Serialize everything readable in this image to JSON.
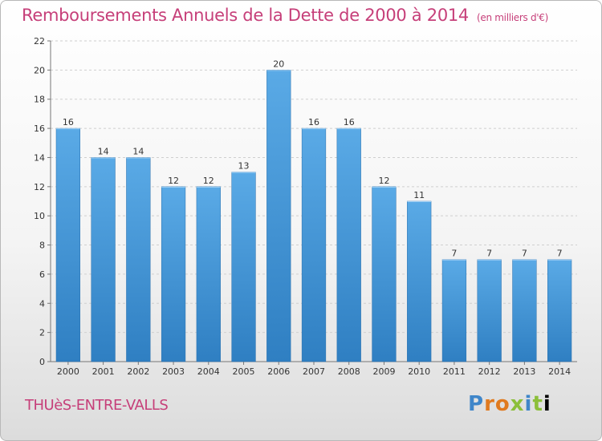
{
  "header": {
    "title": "Remboursements Annuels de la Dette de 2000 à 2014",
    "unit": "(en milliers d'€)"
  },
  "footer": {
    "place": "THUèS-ENTRE-VALLS",
    "logo_letters": [
      "P",
      "r",
      "o",
      "x",
      "i",
      "t",
      "i"
    ]
  },
  "colors": {
    "title": "#c63f79",
    "bar_top": "#5aaae6",
    "bar_bottom": "#2f7fc2"
  },
  "chart_data": {
    "type": "bar",
    "categories": [
      "2000",
      "2001",
      "2002",
      "2003",
      "2004",
      "2005",
      "2006",
      "2007",
      "2008",
      "2009",
      "2010",
      "2011",
      "2012",
      "2013",
      "2014"
    ],
    "values": [
      16,
      14,
      14,
      12,
      12,
      13,
      20,
      16,
      16,
      12,
      11,
      7,
      7,
      7,
      7
    ],
    "title": "Remboursements Annuels de la Dette de 2000 à 2014",
    "xlabel": "",
    "ylabel": "",
    "ylim": [
      0,
      22
    ],
    "yticks": [
      0,
      2,
      4,
      6,
      8,
      10,
      12,
      14,
      16,
      18,
      20,
      22
    ],
    "grid": true,
    "legend": "none"
  }
}
